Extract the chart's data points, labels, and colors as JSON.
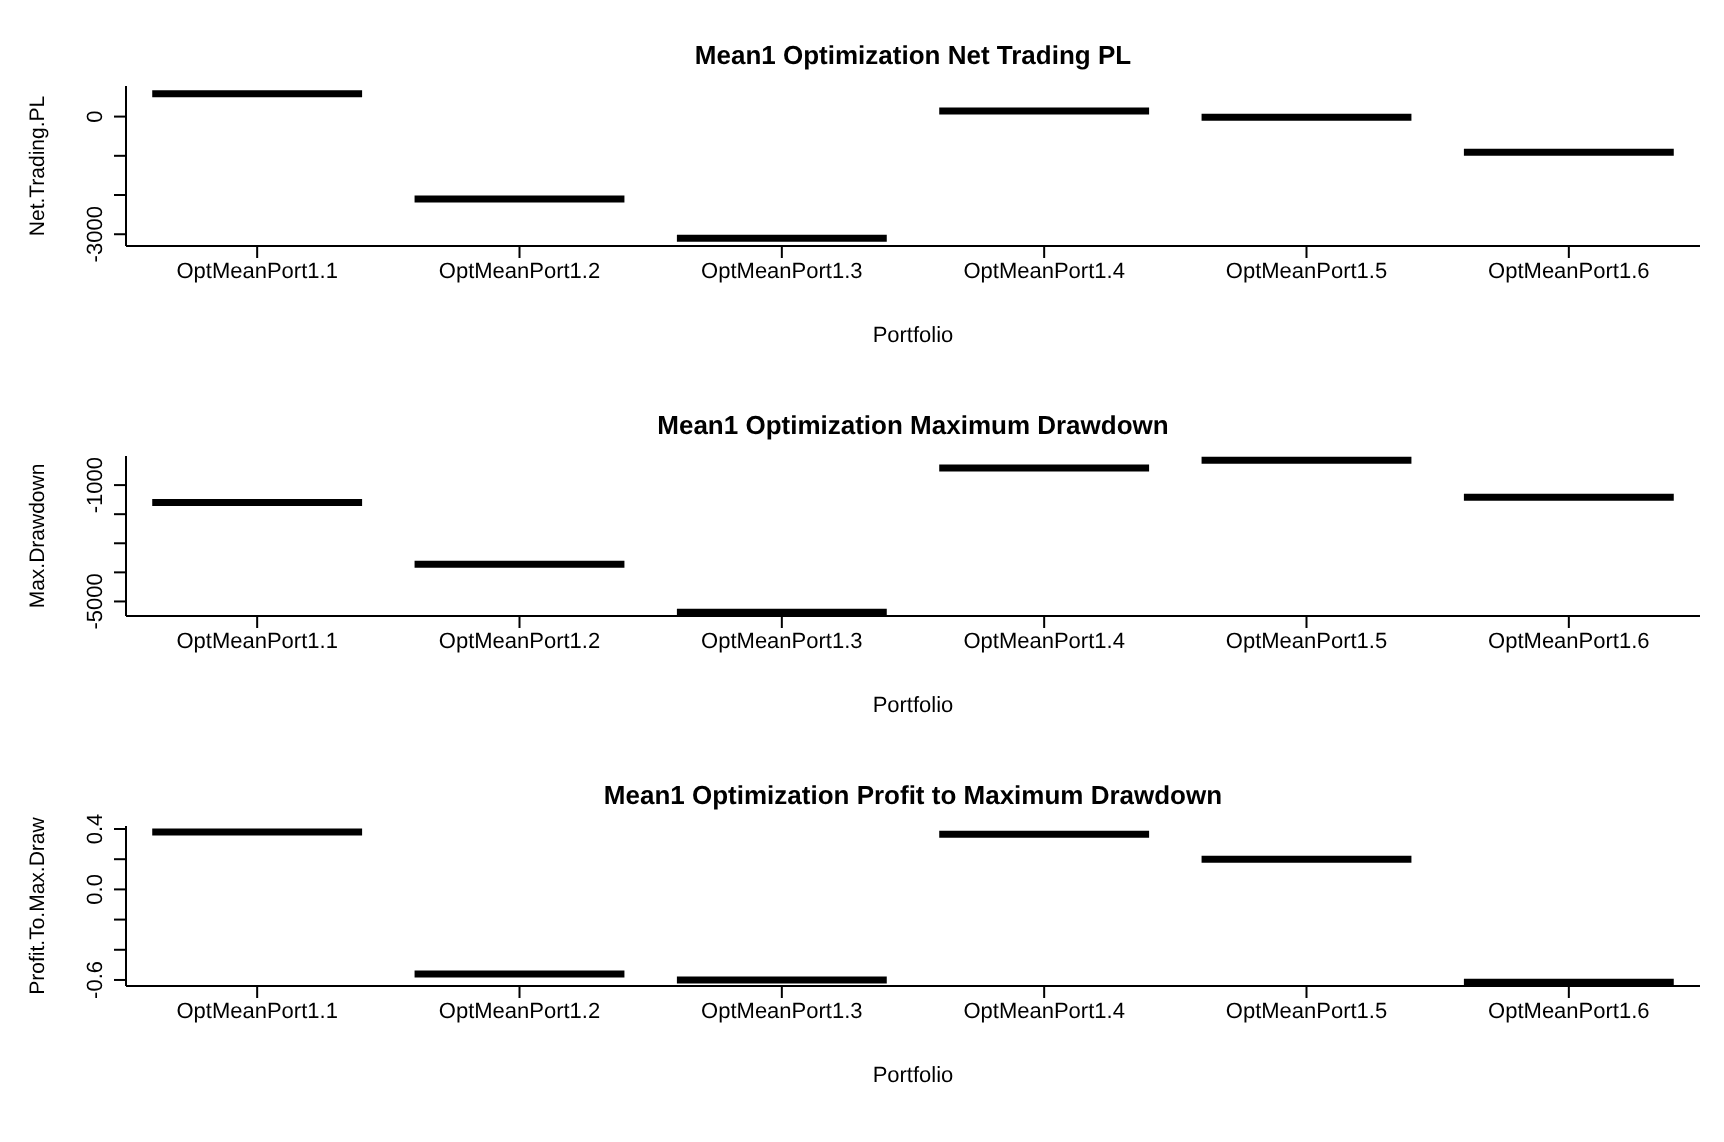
{
  "chart_data": [
    {
      "type": "box",
      "title": "Mean1 Optimization Net Trading PL",
      "xlabel": "Portfolio",
      "ylabel": "Net.Trading.PL",
      "categories": [
        "OptMeanPort1.1",
        "OptMeanPort1.2",
        "OptMeanPort1.3",
        "OptMeanPort1.4",
        "OptMeanPort1.5",
        "OptMeanPort1.6"
      ],
      "series": [
        {
          "color": "#000000",
          "boxes": [
            {
              "low": 580,
              "q1": 580,
              "median": 580,
              "q3": 580,
              "high": 580
            },
            {
              "low": -2100,
              "q1": -2100,
              "median": -2100,
              "q3": -2100,
              "high": -2100
            },
            {
              "low": -3100,
              "q1": -3100,
              "median": -3100,
              "q3": -3100,
              "high": -3100
            },
            {
              "low": 140,
              "q1": 140,
              "median": 140,
              "q3": 140,
              "high": 140
            },
            {
              "low": -20,
              "q1": -20,
              "median": -20,
              "q3": -20,
              "high": -20
            },
            {
              "low": -910,
              "q1": -910,
              "median": -910,
              "q3": -910,
              "high": -910
            }
          ]
        }
      ],
      "ylim": [
        -3300,
        780
      ],
      "yticks": [
        0,
        {
          "value": -1000,
          "label": null
        },
        {
          "value": -2000,
          "label": null
        },
        -3000
      ]
    },
    {
      "type": "box",
      "title": "Mean1 Optimization Maximum Drawdown",
      "xlabel": "Portfolio",
      "ylabel": "Max.Drawdown",
      "categories": [
        "OptMeanPort1.1",
        "OptMeanPort1.2",
        "OptMeanPort1.3",
        "OptMeanPort1.4",
        "OptMeanPort1.5",
        "OptMeanPort1.6"
      ],
      "series": [
        {
          "color": "#000000",
          "boxes": [
            {
              "low": -1600,
              "q1": -1600,
              "median": -1600,
              "q3": -1600,
              "high": -1600
            },
            {
              "low": -3720,
              "q1": -3720,
              "median": -3720,
              "q3": -3720,
              "high": -3720
            },
            {
              "low": -5370,
              "q1": -5370,
              "median": -5370,
              "q3": -5370,
              "high": -5370
            },
            {
              "low": -410,
              "q1": -410,
              "median": -410,
              "q3": -410,
              "high": -410
            },
            {
              "low": -150,
              "q1": -150,
              "median": -150,
              "q3": -150,
              "high": -150
            },
            {
              "low": -1420,
              "q1": -1420,
              "median": -1420,
              "q3": -1420,
              "high": -1420
            }
          ]
        }
      ],
      "ylim": [
        -5500,
        0
      ],
      "yticks": [
        -1000,
        {
          "value": -2000,
          "label": null
        },
        {
          "value": -3000,
          "label": null
        },
        {
          "value": -4000,
          "label": null
        },
        -5000
      ]
    },
    {
      "type": "box",
      "title": "Mean1 Optimization Profit to Maximum Drawdown",
      "xlabel": "Portfolio",
      "ylabel": "Profit.To.Max.Draw",
      "categories": [
        "OptMeanPort1.1",
        "OptMeanPort1.2",
        "OptMeanPort1.3",
        "OptMeanPort1.4",
        "OptMeanPort1.5",
        "OptMeanPort1.6"
      ],
      "series": [
        {
          "color": "#000000",
          "boxes": [
            {
              "low": 0.38,
              "q1": 0.38,
              "median": 0.38,
              "q3": 0.38,
              "high": 0.38
            },
            {
              "low": -0.56,
              "q1": -0.56,
              "median": -0.56,
              "q3": -0.56,
              "high": -0.56
            },
            {
              "low": -0.6,
              "q1": -0.6,
              "median": -0.6,
              "q3": -0.6,
              "high": -0.6
            },
            {
              "low": 0.365,
              "q1": 0.365,
              "median": 0.365,
              "q3": 0.365,
              "high": 0.365
            },
            {
              "low": 0.2,
              "q1": 0.2,
              "median": 0.2,
              "q3": 0.2,
              "high": 0.2
            },
            {
              "low": -0.615,
              "q1": -0.615,
              "median": -0.615,
              "q3": -0.615,
              "high": -0.615
            }
          ]
        }
      ],
      "ylim": [
        -0.64,
        0.42
      ],
      "yticks": [
        0.4,
        {
          "value": 0.2,
          "label": null
        },
        {
          "value": 0,
          "label": "0.0"
        },
        {
          "value": -0.2,
          "label": null
        },
        {
          "value": -0.4,
          "label": null
        },
        -0.6
      ]
    }
  ]
}
